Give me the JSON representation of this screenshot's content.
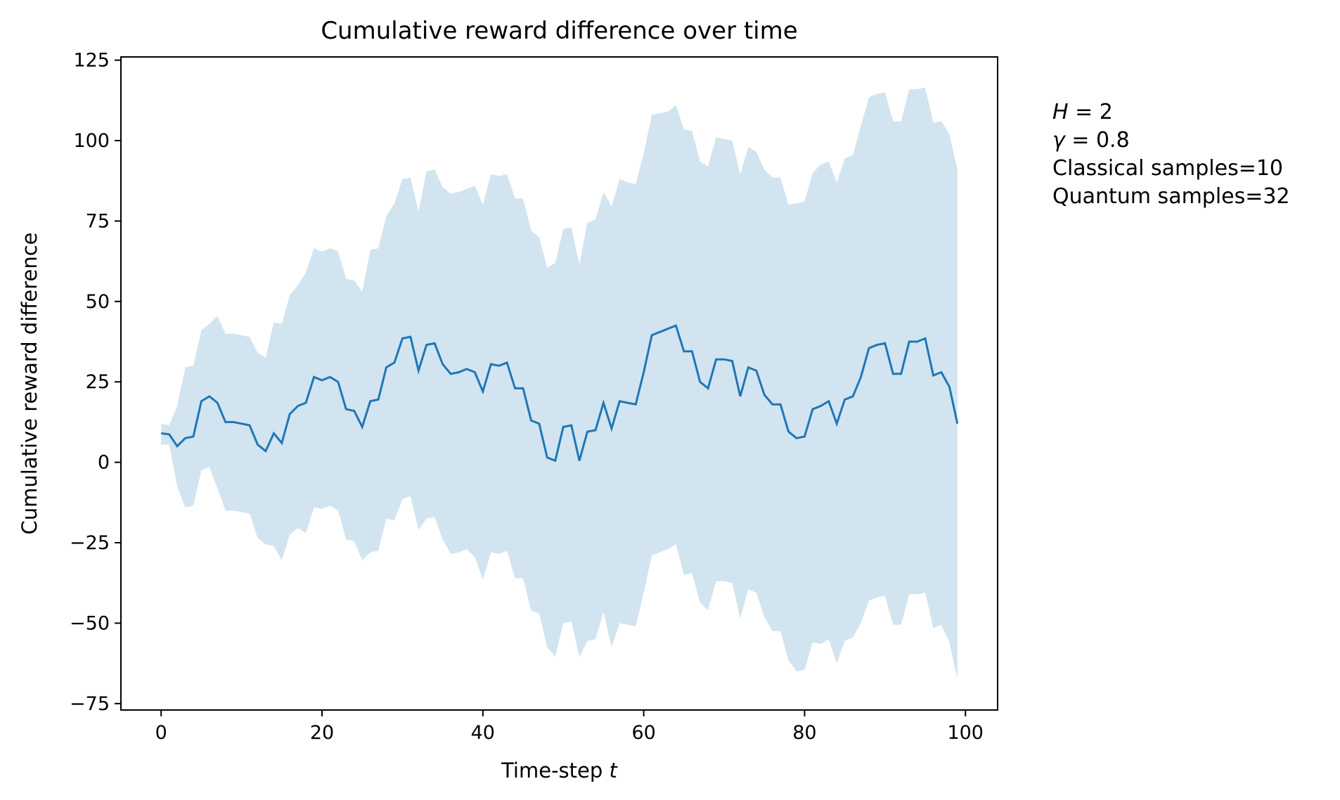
{
  "chart_data": {
    "type": "line",
    "title": "Cumulative reward difference over time",
    "xlabel": "Time-step",
    "xlabel_var": "t",
    "ylabel": "Cumulative reward difference",
    "xlim": [
      -5,
      104
    ],
    "ylim": [
      -77,
      126
    ],
    "xticks": [
      0,
      20,
      40,
      60,
      80,
      100
    ],
    "yticks": [
      -75,
      -50,
      -25,
      0,
      25,
      50,
      75,
      100,
      125
    ],
    "ytick_labels": [
      "−75",
      "−50",
      "−25",
      "0",
      "25",
      "50",
      "75",
      "100",
      "125"
    ],
    "grid": false,
    "colors": {
      "line": "#1f77b4",
      "band": "#1f77b4",
      "band_opacity": 0.2
    },
    "x": [
      0,
      1,
      2,
      3,
      4,
      5,
      6,
      7,
      8,
      9,
      10,
      11,
      12,
      13,
      14,
      15,
      16,
      17,
      18,
      19,
      20,
      21,
      22,
      23,
      24,
      25,
      26,
      27,
      28,
      29,
      30,
      31,
      32,
      33,
      34,
      35,
      36,
      37,
      38,
      39,
      40,
      41,
      42,
      43,
      44,
      45,
      46,
      47,
      48,
      49,
      50,
      51,
      52,
      53,
      54,
      55,
      56,
      57,
      58,
      59,
      60,
      61,
      62,
      63,
      64,
      65,
      66,
      67,
      68,
      69,
      70,
      71,
      72,
      73,
      74,
      75,
      76,
      77,
      78,
      79,
      80,
      81,
      82,
      83,
      84,
      85,
      86,
      87,
      88,
      89,
      90,
      91,
      92,
      93,
      94,
      95,
      96,
      97,
      98,
      99
    ],
    "series": [
      {
        "values": [
          9,
          8.7,
          5,
          7.5,
          8,
          19,
          20.5,
          18.5,
          12.5,
          12.5,
          12,
          11.5,
          5.5,
          3.5,
          9,
          6,
          15,
          17.5,
          18.5,
          26.5,
          25.5,
          26.5,
          25,
          16.5,
          16,
          11,
          19,
          19.5,
          29.5,
          31,
          38.5,
          39,
          28.5,
          36.5,
          37,
          30.5,
          27.5,
          28,
          29,
          28,
          22,
          30.5,
          30,
          31,
          23,
          23,
          13,
          12,
          1.5,
          0.5,
          11,
          11.5,
          0.5,
          9.5,
          10,
          18.5,
          10.5,
          19,
          18.5,
          18,
          28,
          39.5,
          40.5,
          41.5,
          42.5,
          34.5,
          34.5,
          25,
          23,
          32,
          32,
          31.5,
          20.5,
          29.5,
          28.5,
          21,
          18,
          18,
          9.5,
          7.5,
          8,
          16.5,
          17.5,
          19,
          12,
          19.5,
          20.5,
          26.5,
          35.5,
          36.5,
          37,
          27.5,
          27.5,
          37.5,
          37.5,
          38.5,
          27,
          28,
          23.5,
          12
        ]
      }
    ],
    "band": {
      "upper": [
        12,
        11.5,
        17.5,
        29.5,
        30,
        41,
        43,
        45.5,
        40,
        40,
        39.5,
        39,
        34,
        32.5,
        43.5,
        43,
        52,
        55,
        59,
        66.5,
        65.5,
        66.5,
        65.5,
        57,
        56.5,
        53,
        66,
        66.5,
        76.5,
        80.5,
        88,
        88.5,
        78,
        90.5,
        91,
        85.5,
        83.5,
        84,
        85,
        86,
        80,
        89.5,
        89,
        89.5,
        82,
        82,
        72,
        70,
        60.5,
        62,
        72.5,
        73,
        61.5,
        74.5,
        75.5,
        84,
        79.5,
        88,
        87,
        86.5,
        96,
        108,
        108.5,
        109,
        111,
        103.5,
        103,
        93.5,
        92,
        101,
        100.5,
        100,
        89.5,
        98,
        96.5,
        91,
        88.5,
        88.5,
        80,
        80.5,
        81,
        90,
        92.5,
        93.5,
        87,
        94.5,
        95.5,
        104.5,
        113.5,
        114.5,
        115,
        106,
        106,
        116,
        116,
        116.5,
        105.5,
        106,
        102,
        91
      ],
      "lower": [
        5.5,
        5.5,
        -7.5,
        -14,
        -13.5,
        -2.5,
        -1.5,
        -8,
        -15,
        -15,
        -15.5,
        -16,
        -23.5,
        -25.5,
        -26,
        -30.5,
        -22.5,
        -20.5,
        -22,
        -14,
        -14.5,
        -13.5,
        -15,
        -24,
        -24.5,
        -30.5,
        -28,
        -27.5,
        -17.5,
        -18,
        -11.5,
        -10.5,
        -21,
        -17.5,
        -17,
        -24,
        -28.5,
        -28,
        -27,
        -29.5,
        -36.5,
        -28,
        -28.5,
        -27.5,
        -36,
        -36,
        -46,
        -47,
        -57.5,
        -60.5,
        -50,
        -49.5,
        -60.5,
        -55.5,
        -55,
        -46.5,
        -57.5,
        -50,
        -50.5,
        -51,
        -40.5,
        -29,
        -28,
        -27,
        -25.5,
        -35,
        -34.5,
        -43.5,
        -46,
        -37,
        -37,
        -37.5,
        -48.5,
        -39.5,
        -40.5,
        -48,
        -52.5,
        -52.5,
        -61.5,
        -65,
        -64.5,
        -56,
        -56.5,
        -55,
        -62.5,
        -55.5,
        -54.5,
        -50,
        -43,
        -42,
        -41.5,
        -50.5,
        -50.5,
        -41,
        -41,
        -40.5,
        -51.5,
        -50.5,
        -56,
        -67.5
      ]
    }
  },
  "annotation": {
    "h_var": "H",
    "h_eq": " = 2",
    "gamma_var": "γ",
    "gamma_eq": " = 0.8",
    "classical": "Classical samples=10",
    "quantum": "Quantum samples=32"
  }
}
